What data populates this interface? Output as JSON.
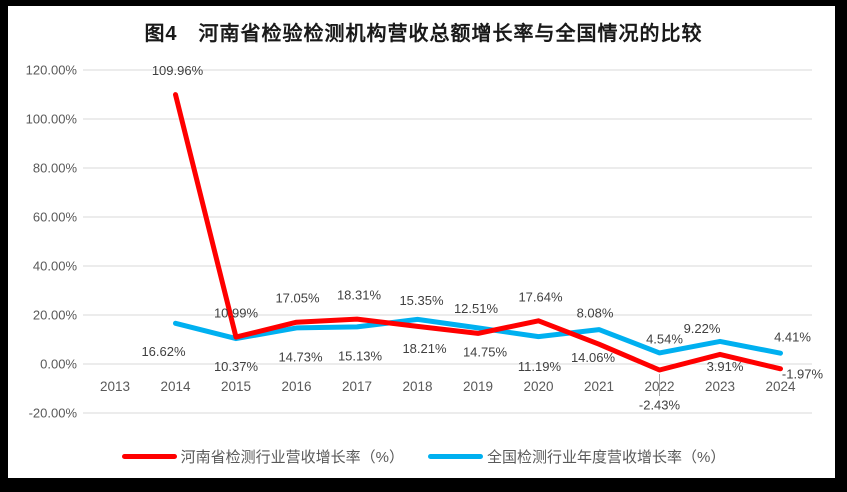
{
  "title": "图4　河南省检验检测机构营收总额增长率与全国情况的比较",
  "colors": {
    "henan_series": "#FF0000",
    "national_series": "#00B0F0",
    "gridline": "#D9D9D9",
    "axis_text": "#595959",
    "data_label_text": "#404040",
    "title_text": "#1a1a1a",
    "leader_line": "#A6A6A6",
    "background": "#FFFFFF",
    "frame": "#000000"
  },
  "legend": {
    "items": [
      {
        "label": "河南省检测行业营收增长率（%）",
        "color_key": "henan_series"
      },
      {
        "label": "全国检测行业年度营收增长率（%）",
        "color_key": "national_series"
      }
    ]
  },
  "chart_data": {
    "type": "line",
    "title": "图4　河南省检验检测机构营收总额增长率与全国情况的比较",
    "categories": [
      "2013",
      "2014",
      "2015",
      "2016",
      "2017",
      "2018",
      "2019",
      "2020",
      "2021",
      "2022",
      "2023",
      "2024"
    ],
    "series": [
      {
        "name": "河南省检测行业营收增长率（%）",
        "color_key": "henan_series",
        "values": [
          null,
          109.96,
          10.99,
          17.05,
          18.31,
          15.35,
          12.51,
          17.64,
          8.08,
          -2.43,
          3.91,
          -1.97
        ],
        "point_labels": [
          null,
          "109.96%",
          "10.99%",
          "17.05%",
          "18.31%",
          "15.35%",
          "12.51%",
          "17.64%",
          "8.08%",
          "-2.43%",
          "3.91%",
          "-1.97%"
        ],
        "label_offsets": [
          null,
          [
            2,
            -24
          ],
          [
            0,
            -24
          ],
          [
            1,
            -24
          ],
          [
            2,
            -24
          ],
          [
            4,
            -26
          ],
          [
            -2,
            -25
          ],
          [
            2,
            -24
          ],
          [
            -4,
            -31
          ],
          [
            0,
            35
          ],
          [
            5,
            12
          ],
          [
            22,
            5
          ]
        ]
      },
      {
        "name": "全国检测行业年度营收增长率（%）",
        "color_key": "national_series",
        "values": [
          null,
          16.62,
          10.37,
          14.73,
          15.13,
          18.21,
          14.75,
          11.19,
          14.06,
          4.54,
          9.22,
          4.41
        ],
        "point_labels": [
          null,
          "16.62%",
          "10.37%",
          "14.73%",
          "15.13%",
          "18.21%",
          "14.75%",
          "11.19%",
          "14.06%",
          "4.54%",
          "9.22%",
          "4.41%"
        ],
        "label_offsets": [
          null,
          [
            -12,
            28
          ],
          [
            0,
            28
          ],
          [
            4,
            29
          ],
          [
            3,
            29
          ],
          [
            7,
            29
          ],
          [
            7,
            24
          ],
          [
            1,
            30
          ],
          [
            -6,
            28
          ],
          [
            5,
            -14
          ],
          [
            -18,
            -13
          ],
          [
            12,
            -16
          ]
        ]
      }
    ],
    "y_axis": {
      "min": -20,
      "max": 120,
      "step": 20,
      "tick_values": [
        120,
        100,
        80,
        60,
        40,
        20,
        0,
        -20
      ],
      "tick_labels": [
        "120.00%",
        "100.00%",
        "80.00%",
        "60.00%",
        "40.00%",
        "20.00%",
        "0.00%",
        "-20.00%"
      ]
    },
    "x_axis": {
      "tick_labels": [
        "2013",
        "2014",
        "2015",
        "2016",
        "2017",
        "2018",
        "2019",
        "2020",
        "2021",
        "2022",
        "2023",
        "2024"
      ]
    },
    "grid": true,
    "legend_position": "bottom",
    "leader_lines": [
      {
        "series": 0,
        "index": 9
      }
    ]
  }
}
